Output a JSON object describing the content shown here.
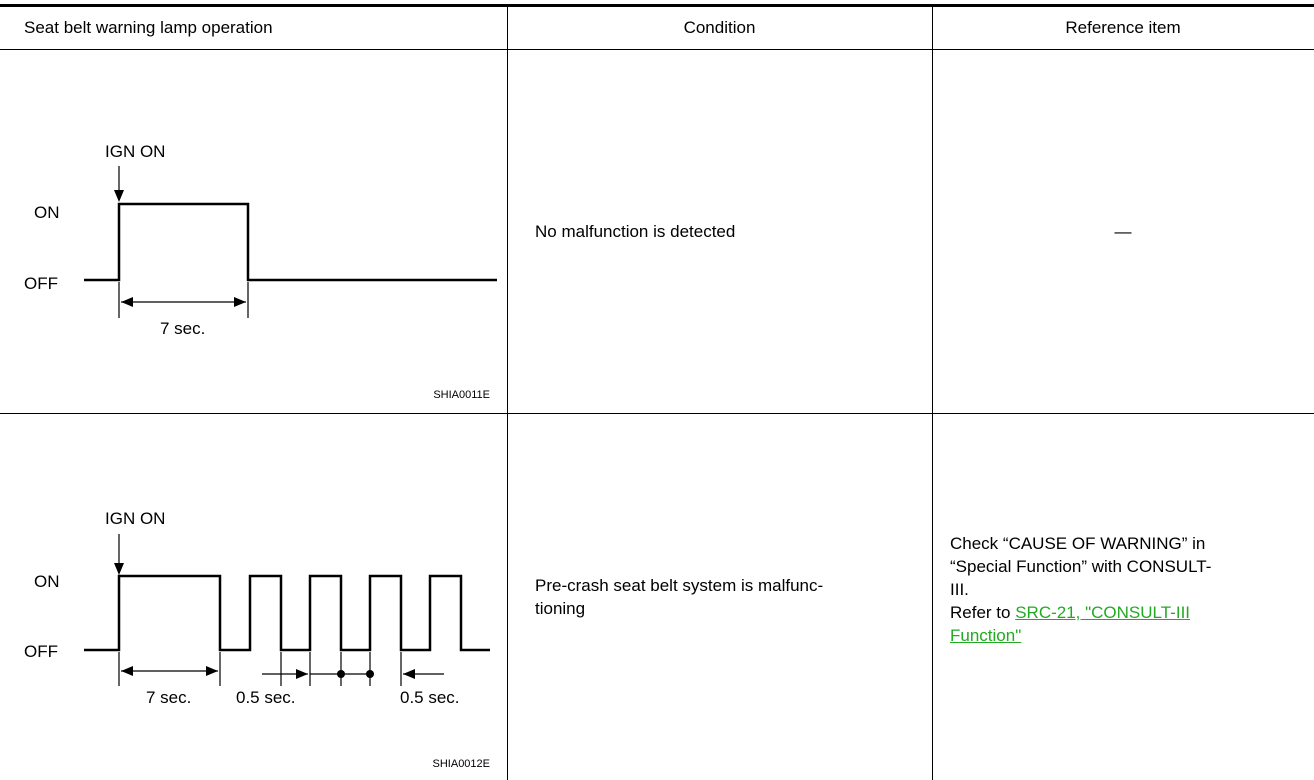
{
  "table": {
    "headers": {
      "operation": "Seat belt warning lamp operation",
      "condition": "Condition",
      "reference": "Reference item"
    },
    "rows": [
      {
        "diagram": {
          "ign_label": "IGN ON",
          "on_label": "ON",
          "off_label": "OFF",
          "duration_label": "7 sec.",
          "figure_id": "SHIA0011E"
        },
        "condition": "No malfunction is detected",
        "reference": "—"
      },
      {
        "diagram": {
          "ign_label": "IGN ON",
          "on_label": "ON",
          "off_label": "OFF",
          "duration_label": "7 sec.",
          "pulse_label_1": "0.5 sec.",
          "pulse_label_2": "0.5 sec.",
          "figure_id": "SHIA0012E"
        },
        "condition_line1": "Pre-crash seat belt system is malfunc-",
        "condition_line2": "tioning",
        "reference_line1": "Check “CAUSE OF WARNING” in",
        "reference_line2": "“Special Function” with CONSULT-",
        "reference_line3": "III.",
        "reference_prefix": "Refer to ",
        "reference_link_line1": "SRC-21, \"CONSULT-III ",
        "reference_link_line2": "Function\""
      }
    ]
  }
}
